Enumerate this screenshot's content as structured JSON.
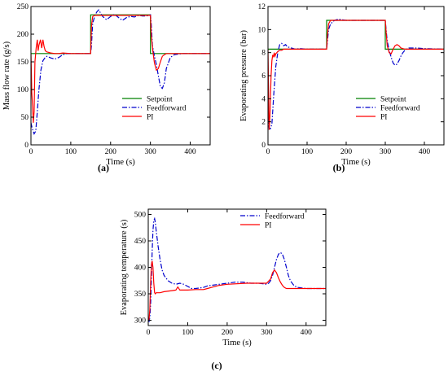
{
  "chart_data": [
    {
      "panel_label": "(a)",
      "type": "line",
      "title": "",
      "xlabel": "Time (s)",
      "ylabel": "Mass flow rate (g/s)",
      "xlim": [
        0,
        450
      ],
      "ylim": [
        0,
        250
      ],
      "xticks": [
        "0",
        "100",
        "200",
        "300",
        "400"
      ],
      "yticks": [
        "0",
        "50",
        "100",
        "150",
        "200",
        "250"
      ],
      "grid": false,
      "legend_position": "bottom-right",
      "series": [
        {
          "name": "Setpoint",
          "color": "#008000",
          "style": "solid",
          "x": [
            0,
            150,
            150,
            300,
            300,
            450
          ],
          "y": [
            165,
            165,
            235,
            235,
            165,
            165
          ]
        },
        {
          "name": "Feedforward",
          "color": "#0000cc",
          "style": "dashdot",
          "x": [
            0,
            3,
            8,
            12,
            16,
            20,
            25,
            30,
            35,
            40,
            50,
            60,
            70,
            80,
            90,
            100,
            110,
            120,
            130,
            140,
            150,
            152,
            155,
            160,
            165,
            170,
            175,
            180,
            190,
            200,
            210,
            220,
            230,
            240,
            250,
            260,
            270,
            280,
            290,
            300,
            302,
            305,
            310,
            315,
            320,
            325,
            330,
            335,
            340,
            350,
            360,
            380,
            400,
            420,
            450
          ],
          "y": [
            40,
            30,
            20,
            25,
            60,
            100,
            135,
            152,
            157,
            160,
            157,
            155,
            158,
            163,
            165,
            165,
            165,
            165,
            165,
            165,
            165,
            180,
            220,
            232,
            240,
            244,
            238,
            232,
            226,
            232,
            236,
            230,
            225,
            230,
            232,
            231,
            234,
            233,
            233,
            235,
            220,
            180,
            160,
            145,
            125,
            105,
            102,
            112,
            138,
            158,
            163,
            165,
            165,
            165,
            165
          ]
        },
        {
          "name": "PI",
          "color": "#ff0000",
          "style": "solid",
          "x": [
            0,
            2,
            4,
            6,
            8,
            10,
            13,
            16,
            18,
            20,
            24,
            27,
            30,
            33,
            36,
            40,
            50,
            60,
            70,
            80,
            100,
            120,
            140,
            150,
            152,
            155,
            160,
            170,
            200,
            250,
            300,
            302,
            306,
            310,
            315,
            320,
            325,
            330,
            335,
            340,
            350,
            360,
            400,
            450
          ],
          "y": [
            165,
            95,
            70,
            40,
            60,
            150,
            175,
            190,
            170,
            180,
            190,
            175,
            190,
            178,
            170,
            168,
            166,
            165,
            165,
            166,
            165,
            165,
            165,
            165,
            215,
            232,
            234,
            234,
            234,
            234,
            234,
            200,
            170,
            148,
            135,
            138,
            150,
            160,
            163,
            165,
            165,
            165,
            165,
            165
          ]
        }
      ]
    },
    {
      "panel_label": "(b)",
      "type": "line",
      "title": "",
      "xlabel": "Time (s)",
      "ylabel": "Evaporating pressure (bar)",
      "xlim": [
        0,
        450
      ],
      "ylim": [
        0,
        12
      ],
      "xticks": [
        "0",
        "100",
        "200",
        "300",
        "400"
      ],
      "yticks": [
        "0",
        "2",
        "4",
        "6",
        "8",
        "10",
        "12"
      ],
      "grid": false,
      "legend_position": "bottom-right",
      "series": [
        {
          "name": "Setpoint",
          "color": "#008000",
          "style": "solid",
          "x": [
            0,
            150,
            150,
            300,
            300,
            450
          ],
          "y": [
            8.3,
            8.3,
            10.8,
            10.8,
            8.3,
            8.3
          ]
        },
        {
          "name": "Feedforward",
          "color": "#0000cc",
          "style": "dashdot",
          "x": [
            0,
            3,
            6,
            10,
            15,
            20,
            25,
            30,
            35,
            40,
            45,
            50,
            60,
            70,
            80,
            100,
            120,
            140,
            150,
            152,
            155,
            160,
            170,
            180,
            190,
            200,
            220,
            250,
            280,
            300,
            302,
            305,
            310,
            315,
            320,
            325,
            330,
            335,
            340,
            345,
            350,
            360,
            380,
            400,
            450
          ],
          "y": [
            2.5,
            1.5,
            1.4,
            1.8,
            4.5,
            6.8,
            8.0,
            8.7,
            8.8,
            8.6,
            8.7,
            8.5,
            8.4,
            8.3,
            8.35,
            8.3,
            8.3,
            8.3,
            8.3,
            9.0,
            10.0,
            10.5,
            10.8,
            10.9,
            10.85,
            10.8,
            10.8,
            10.8,
            10.8,
            10.8,
            10.0,
            9.0,
            8.2,
            7.6,
            7.1,
            6.9,
            7.0,
            7.3,
            7.7,
            8.0,
            8.2,
            8.4,
            8.4,
            8.35,
            8.3
          ]
        },
        {
          "name": "PI",
          "color": "#ff0000",
          "style": "solid",
          "x": [
            0,
            3,
            5,
            8,
            10,
            12,
            14,
            16,
            18,
            20,
            25,
            30,
            35,
            40,
            50,
            60,
            80,
            100,
            120,
            140,
            150,
            152,
            155,
            160,
            170,
            180,
            200,
            250,
            300,
            302,
            305,
            310,
            315,
            320,
            325,
            330,
            335,
            340,
            350,
            360,
            400,
            450
          ],
          "y": [
            8.3,
            1.3,
            2.5,
            6.0,
            7.3,
            7.8,
            7.6,
            8.0,
            7.7,
            7.9,
            8.1,
            8.2,
            8.2,
            8.3,
            8.3,
            8.3,
            8.3,
            8.3,
            8.3,
            8.3,
            8.3,
            9.5,
            10.5,
            10.8,
            10.8,
            10.8,
            10.8,
            10.8,
            10.8,
            9.8,
            8.6,
            8.0,
            7.9,
            8.3,
            8.6,
            8.7,
            8.6,
            8.4,
            8.3,
            8.3,
            8.3,
            8.3
          ]
        }
      ]
    },
    {
      "panel_label": "(c)",
      "type": "line",
      "title": "",
      "xlabel": "Time (s)",
      "ylabel": "Evaporating temperature (s)",
      "xlim": [
        0,
        450
      ],
      "ylim": [
        290,
        510
      ],
      "xticks": [
        "0",
        "100",
        "200",
        "300",
        "400"
      ],
      "yticks": [
        "300",
        "350",
        "400",
        "450",
        "500"
      ],
      "grid": false,
      "legend_position": "top-right",
      "series": [
        {
          "name": "Feedforward",
          "color": "#0000cc",
          "style": "dashdot",
          "x": [
            0,
            2,
            4,
            6,
            8,
            10,
            12,
            14,
            16,
            18,
            20,
            25,
            30,
            35,
            40,
            50,
            60,
            70,
            80,
            90,
            100,
            110,
            120,
            140,
            150,
            160,
            180,
            200,
            220,
            240,
            260,
            280,
            300,
            305,
            310,
            315,
            320,
            325,
            330,
            335,
            340,
            345,
            350,
            355,
            360,
            370,
            380,
            400,
            450
          ],
          "y": [
            300,
            298,
            305,
            330,
            380,
            430,
            470,
            488,
            492,
            485,
            470,
            440,
            415,
            395,
            385,
            375,
            370,
            368,
            370,
            368,
            364,
            360,
            360,
            362,
            365,
            366,
            368,
            370,
            372,
            372,
            370,
            370,
            368,
            370,
            375,
            385,
            400,
            415,
            425,
            428,
            425,
            415,
            400,
            385,
            375,
            365,
            362,
            360,
            360
          ]
        },
        {
          "name": "PI",
          "color": "#ff0000",
          "style": "solid",
          "x": [
            0,
            2,
            4,
            6,
            8,
            10,
            12,
            14,
            16,
            18,
            20,
            30,
            40,
            60,
            70,
            75,
            80,
            100,
            120,
            140,
            150,
            160,
            180,
            200,
            250,
            300,
            310,
            315,
            320,
            325,
            330,
            335,
            340,
            345,
            350,
            360,
            380,
            400,
            450
          ],
          "y": [
            300,
            302,
            320,
            370,
            405,
            412,
            400,
            370,
            352,
            350,
            352,
            352,
            354,
            356,
            357,
            363,
            357,
            357,
            358,
            358,
            360,
            362,
            366,
            368,
            370,
            370,
            378,
            390,
            395,
            390,
            380,
            372,
            366,
            362,
            360,
            360,
            360,
            360,
            360
          ]
        }
      ]
    }
  ]
}
